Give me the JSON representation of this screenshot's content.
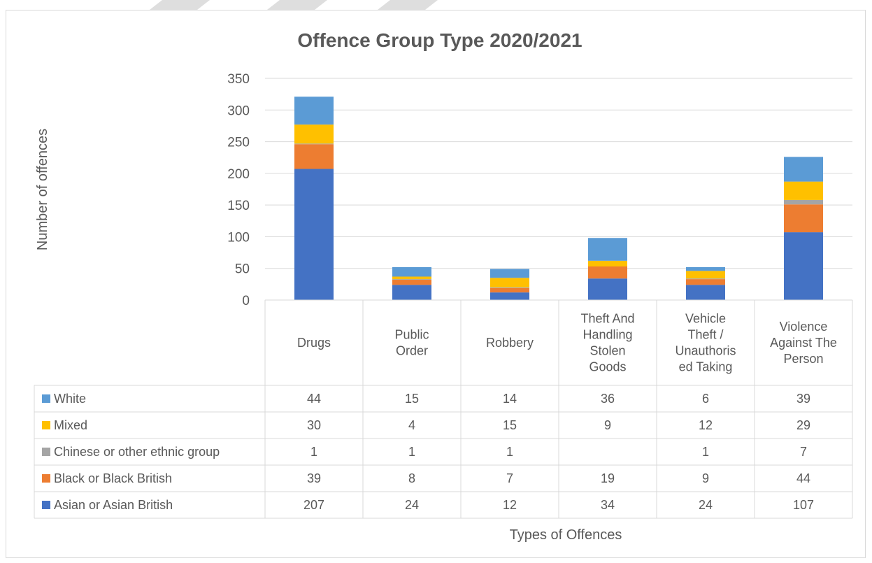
{
  "chart_data": {
    "type": "bar",
    "stacked": true,
    "title": "Offence Group Type 2020/2021",
    "xlabel": "Types of Offences",
    "ylabel": "Number of offences",
    "ylim": [
      0,
      350
    ],
    "yticks": [
      0,
      50,
      100,
      150,
      200,
      250,
      300,
      350
    ],
    "grid": true,
    "legend_placement": "data-table",
    "categories": [
      "Drugs",
      "Public Order",
      "Robbery",
      "Theft And Handling Stolen Goods",
      "Vehicle Theft / Unauthorised Taking",
      "Violence Against The Person"
    ],
    "category_label_lines": [
      [
        "Drugs"
      ],
      [
        "Public",
        "Order"
      ],
      [
        "Robbery"
      ],
      [
        "Theft And",
        "Handling",
        "Stolen",
        "Goods"
      ],
      [
        "Vehicle",
        "Theft /",
        "Unauthoris",
        "ed Taking"
      ],
      [
        "Violence",
        "Against The",
        "Person"
      ]
    ],
    "series": [
      {
        "name": "Asian or Asian British",
        "color": "#4472c4",
        "values": [
          207,
          24,
          12,
          34,
          24,
          107
        ]
      },
      {
        "name": "Black or Black British",
        "color": "#ed7d31",
        "values": [
          39,
          8,
          7,
          19,
          9,
          44
        ]
      },
      {
        "name": "Chinese or other ethnic group",
        "color": "#a5a5a5",
        "values": [
          1,
          1,
          1,
          null,
          1,
          7
        ]
      },
      {
        "name": "Mixed",
        "color": "#ffc000",
        "values": [
          30,
          4,
          15,
          9,
          12,
          29
        ]
      },
      {
        "name": "White",
        "color": "#5b9bd5",
        "values": [
          44,
          15,
          14,
          36,
          6,
          39
        ]
      }
    ],
    "table_row_order": [
      "White",
      "Mixed",
      "Chinese or other ethnic group",
      "Black or Black British",
      "Asian or Asian British"
    ]
  }
}
